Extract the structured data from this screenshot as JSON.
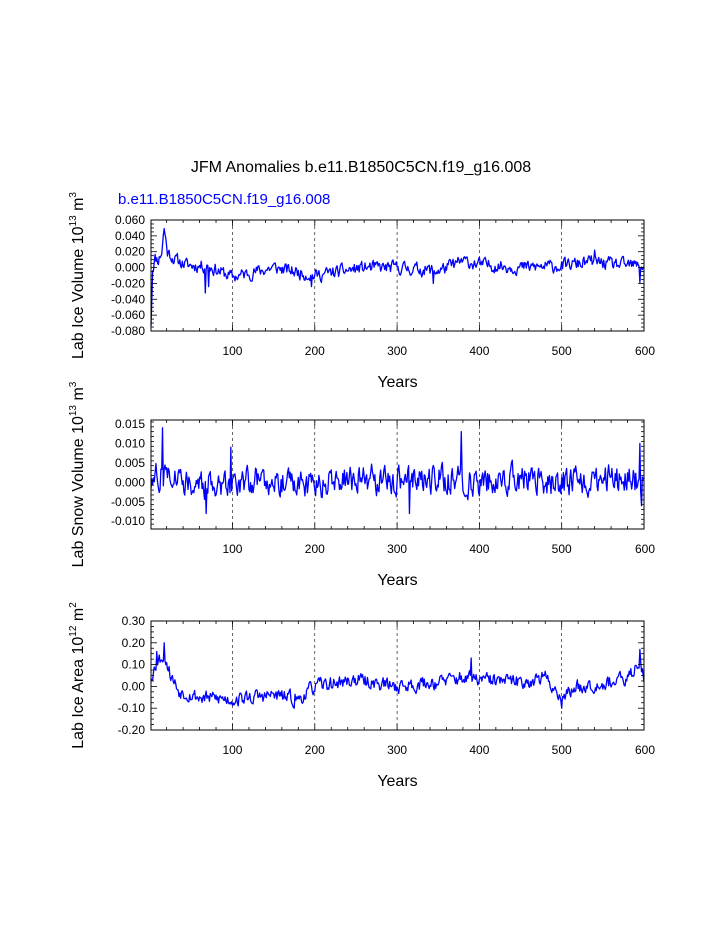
{
  "title": "JFM Anomalies b.e11.B1850C5CN.f19_g16.008",
  "subtitle": "b.e11.B1850C5CN.f19_g16.008",
  "colors": {
    "series": "#0000ff",
    "subtitle": "#0000ff",
    "axis": "#000000",
    "grid": "#000000"
  },
  "chart_data": [
    {
      "type": "line",
      "ylabel": {
        "main": "Lab Ice Volume 10",
        "exp": "13",
        "unit": " m",
        "unit_exp": "3"
      },
      "xlabel": "Years",
      "xlim": [
        1,
        600
      ],
      "ylim": [
        -0.08,
        0.06
      ],
      "grid": "vertical dashed at x ticks",
      "xticks": [
        100,
        200,
        300,
        400,
        500,
        600
      ],
      "yticks": [
        0.06,
        0.04,
        0.02,
        0.0,
        -0.02,
        -0.04,
        -0.06,
        -0.08
      ],
      "ytick_labels": [
        "0.060",
        "0.040",
        "0.020",
        "0.000",
        "-0.020",
        "-0.040",
        "-0.060",
        "-0.080"
      ],
      "series": [
        {
          "name": "b.e11.B1850C5CN.f19_g16.008",
          "knots": [
            [
              1,
              -0.07
            ],
            [
              3,
              0.0
            ],
            [
              6,
              0.012
            ],
            [
              10,
              0.01
            ],
            [
              14,
              0.02
            ],
            [
              17,
              0.05
            ],
            [
              21,
              0.02
            ],
            [
              30,
              0.01
            ],
            [
              45,
              0.003
            ],
            [
              70,
              0.002
            ],
            [
              100,
              -0.012
            ],
            [
              150,
              0.0
            ],
            [
              200,
              -0.01
            ],
            [
              260,
              0.0
            ],
            [
              300,
              0.0
            ],
            [
              350,
              -0.004
            ],
            [
              380,
              0.008
            ],
            [
              400,
              0.004
            ],
            [
              450,
              0.0
            ],
            [
              500,
              0.002
            ],
            [
              540,
              0.008
            ],
            [
              560,
              0.004
            ],
            [
              600,
              0.002
            ]
          ],
          "noise": 0.007,
          "spikes": [
            [
              67,
              -0.032
            ],
            [
              71,
              -0.024
            ],
            [
              196,
              -0.024
            ],
            [
              344,
              -0.02
            ],
            [
              540,
              0.022
            ],
            [
              595,
              -0.019
            ]
          ],
          "seed": 11
        }
      ]
    },
    {
      "type": "line",
      "ylabel": {
        "main": "Lab Snow Volume 10",
        "exp": "13",
        "unit": " m",
        "unit_exp": "3"
      },
      "xlabel": "Years",
      "xlim": [
        1,
        600
      ],
      "ylim": [
        -0.012,
        0.016
      ],
      "grid": "vertical dashed at x ticks",
      "xticks": [
        100,
        200,
        300,
        400,
        500,
        600
      ],
      "yticks": [
        0.015,
        0.01,
        0.005,
        0.0,
        -0.005,
        -0.01
      ],
      "ytick_labels": [
        "0.015",
        "0.010",
        "0.005",
        "0.000",
        "-0.005",
        "-0.010"
      ],
      "series": [
        {
          "name": "b.e11.B1850C5CN.f19_g16.008",
          "knots": [
            [
              1,
              0.0
            ],
            [
              20,
              0.003
            ],
            [
              60,
              -0.001
            ],
            [
              100,
              0.0
            ],
            [
              150,
              0.001
            ],
            [
              200,
              -0.001
            ],
            [
              250,
              0.001
            ],
            [
              300,
              0.0
            ],
            [
              350,
              0.001
            ],
            [
              400,
              0.0
            ],
            [
              450,
              0.001
            ],
            [
              500,
              0.0
            ],
            [
              550,
              0.001
            ],
            [
              600,
              0.0
            ]
          ],
          "noise": 0.0032,
          "spikes": [
            [
              15,
              0.014
            ],
            [
              98,
              0.009
            ],
            [
              378,
              0.013
            ],
            [
              595,
              0.01
            ],
            [
              597,
              -0.006
            ],
            [
              315,
              -0.008
            ],
            [
              68,
              -0.008
            ]
          ],
          "seed": 27
        }
      ]
    },
    {
      "type": "line",
      "ylabel": {
        "main": "Lab Ice Area 10",
        "exp": "12",
        "unit": " m",
        "unit_exp": "2"
      },
      "xlabel": "Years",
      "xlim": [
        1,
        600
      ],
      "ylim": [
        -0.2,
        0.3
      ],
      "grid": "vertical dashed at x ticks",
      "xticks": [
        100,
        200,
        300,
        400,
        500,
        600
      ],
      "yticks": [
        0.3,
        0.2,
        0.1,
        0.0,
        -0.1,
        -0.2
      ],
      "ytick_labels": [
        "0.30",
        "0.20",
        "0.10",
        "0.00",
        "-0.10",
        "-0.20"
      ],
      "series": [
        {
          "name": "b.e11.B1850C5CN.f19_g16.008",
          "knots": [
            [
              1,
              0.05
            ],
            [
              10,
              0.12
            ],
            [
              17,
              0.15
            ],
            [
              25,
              0.05
            ],
            [
              35,
              -0.02
            ],
            [
              60,
              -0.05
            ],
            [
              100,
              -0.06
            ],
            [
              150,
              -0.04
            ],
            [
              180,
              -0.06
            ],
            [
              200,
              0.0
            ],
            [
              250,
              0.03
            ],
            [
              300,
              0.0
            ],
            [
              350,
              0.02
            ],
            [
              380,
              0.04
            ],
            [
              400,
              0.03
            ],
            [
              450,
              0.02
            ],
            [
              480,
              0.04
            ],
            [
              500,
              -0.05
            ],
            [
              520,
              0.0
            ],
            [
              560,
              0.02
            ],
            [
              580,
              0.03
            ],
            [
              595,
              0.12
            ],
            [
              600,
              0.05
            ]
          ],
          "noise": 0.028,
          "spikes": [
            [
              17,
              0.2
            ],
            [
              8,
              0.16
            ],
            [
              500,
              -0.1
            ],
            [
              595,
              0.17
            ],
            [
              390,
              0.13
            ],
            [
              175,
              -0.1
            ]
          ],
          "seed": 53
        }
      ]
    }
  ]
}
